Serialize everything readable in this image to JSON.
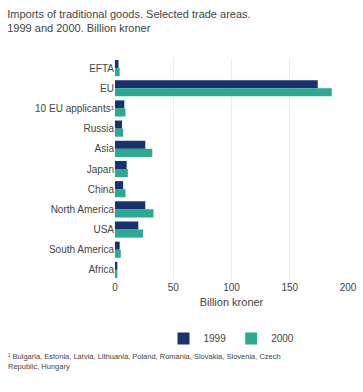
{
  "chart_data": {
    "type": "bar",
    "orientation": "horizontal",
    "title": "Imports of traditional goods. Selected trade areas.",
    "subtitle": "1999 and 2000. Billion kroner",
    "categories": [
      "EFTA",
      "EU",
      "10 EU applicants¹",
      "Russia",
      "Asia",
      "Japan",
      "China",
      "North America",
      "USA",
      "South America",
      "Africa"
    ],
    "series": [
      {
        "name": "1999",
        "color": "#1a3170",
        "values": [
          3,
          174,
          8,
          6,
          26,
          10,
          7,
          26,
          20,
          4,
          2
        ]
      },
      {
        "name": "2000",
        "color": "#2aaa90",
        "values": [
          4,
          186,
          9,
          7,
          32,
          11,
          9,
          33,
          24,
          5,
          2
        ]
      }
    ],
    "xlabel": "Billion kroner",
    "xlim": [
      0,
      200
    ],
    "xticks": [
      0,
      50,
      100,
      150,
      200
    ],
    "grid": true,
    "legend": "bottom",
    "annotations": [
      "¹ Bulgaria, Estonia, Latvia, Lithuania, Poland, Romania, Slovakia, Slovenia, Czech\nRepublic, Hungary"
    ]
  }
}
